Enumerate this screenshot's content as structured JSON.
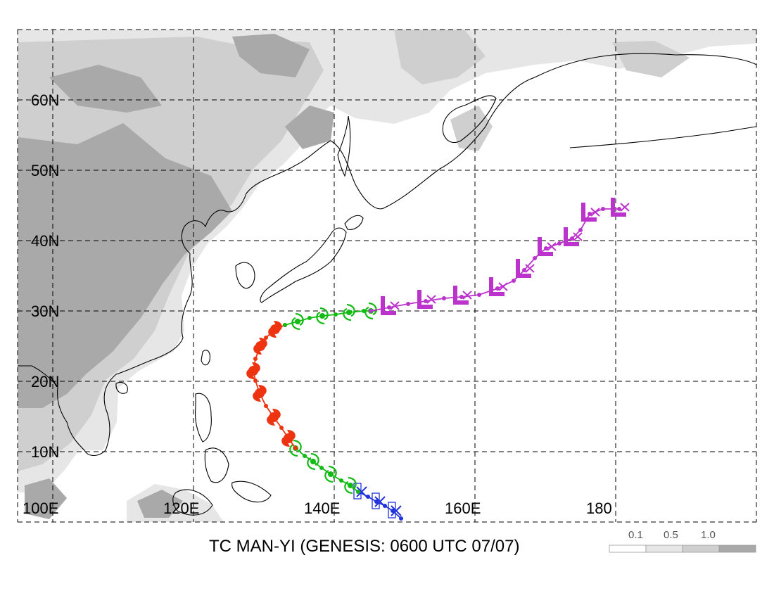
{
  "title": "TC MAN-YI (GENESIS: 0600 UTC 07/07)",
  "lat_labels": [
    "60N",
    "50N",
    "40N",
    "30N",
    "20N",
    "10N"
  ],
  "lon_labels": [
    "100E",
    "120E",
    "140E",
    "160E",
    "180"
  ],
  "legend": {
    "labels": [
      "0.1",
      "0.5",
      "1.0"
    ]
  },
  "colors": {
    "stage_blue": "#2233dd",
    "stage_green": "#11bb11",
    "stage_red": "#ee3311",
    "stage_magenta": "#bb33cc",
    "terrain_light": "#e6e6e6",
    "terrain_mid": "#cfcfcf",
    "terrain_dark": "#a9a9a9"
  },
  "track": {
    "stages": [
      {
        "color": "stage_blue",
        "symbol": "depression-square-x",
        "points": [
          [
            149.5,
            5.5
          ],
          [
            148.3,
            6.6
          ],
          [
            147.2,
            7.3
          ],
          [
            146.0,
            7.9
          ],
          [
            144.8,
            8.6
          ],
          [
            143.4,
            9.3
          ]
        ]
      },
      {
        "color": "stage_green",
        "symbol": "tropical-storm",
        "points": [
          [
            143.4,
            9.3
          ],
          [
            142.3,
            10.2
          ],
          [
            141.0,
            10.9
          ],
          [
            139.5,
            11.8
          ],
          [
            138.2,
            12.7
          ],
          [
            137.0,
            13.6
          ],
          [
            135.8,
            14.4
          ],
          [
            134.5,
            15.5
          ]
        ]
      },
      {
        "color": "stage_red",
        "symbol": "typhoon",
        "points": [
          [
            134.5,
            15.5
          ],
          [
            133.5,
            16.9
          ],
          [
            132.5,
            18.4
          ],
          [
            131.4,
            19.9
          ],
          [
            130.3,
            21.5
          ],
          [
            129.4,
            23.3
          ],
          [
            128.8,
            25.1
          ],
          [
            128.5,
            26.5
          ],
          [
            128.8,
            28.2
          ],
          [
            129.5,
            30.0
          ],
          [
            130.3,
            31.2
          ],
          [
            131.6,
            32.4
          ],
          [
            133.0,
            33.0
          ]
        ]
      },
      {
        "color": "stage_green",
        "symbol": "tropical-storm",
        "points": [
          [
            133.0,
            33.0
          ],
          [
            134.8,
            33.5
          ],
          [
            136.5,
            34.0
          ],
          [
            138.3,
            34.3
          ],
          [
            140.2,
            34.5
          ],
          [
            142.1,
            34.8
          ],
          [
            144.2,
            35.0
          ],
          [
            145.2,
            35.0
          ]
        ]
      },
      {
        "color": "stage_magenta",
        "symbol": "extratropical",
        "points": [
          [
            145.2,
            35.0
          ],
          [
            147.8,
            35.5
          ],
          [
            150.5,
            36.0
          ],
          [
            153.0,
            36.4
          ],
          [
            155.6,
            36.8
          ],
          [
            158.1,
            37.0
          ],
          [
            160.6,
            37.3
          ],
          [
            163.2,
            38.2
          ],
          [
            165.5,
            39.3
          ],
          [
            167.0,
            40.8
          ],
          [
            168.5,
            42.5
          ],
          [
            170.1,
            43.9
          ],
          [
            172.0,
            44.6
          ],
          [
            173.8,
            45.3
          ],
          [
            175.0,
            46.5
          ],
          [
            176.3,
            48.8
          ],
          [
            178.2,
            49.5
          ],
          [
            180.5,
            49.5
          ]
        ]
      }
    ]
  }
}
